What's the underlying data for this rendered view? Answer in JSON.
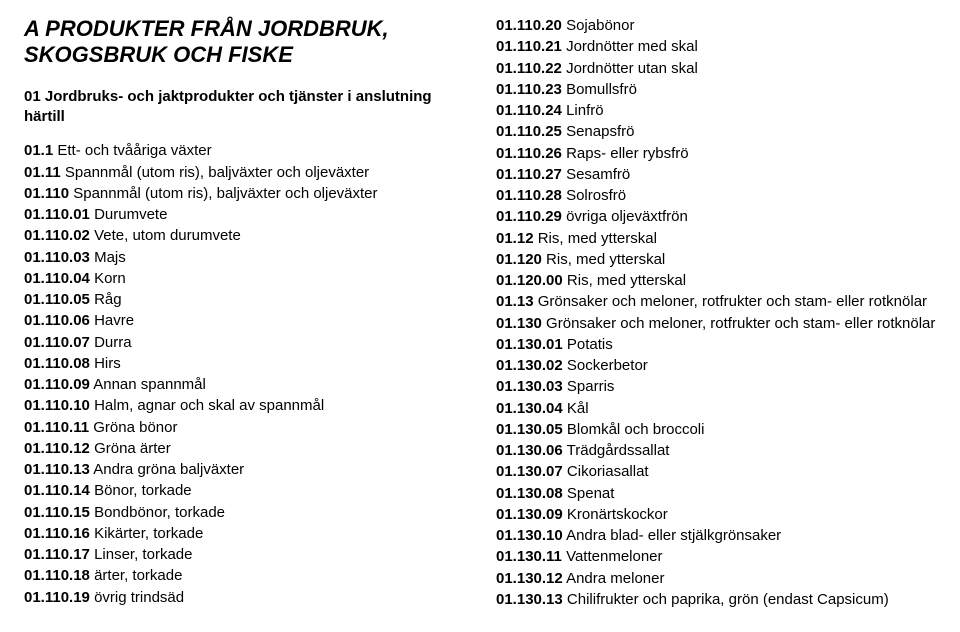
{
  "section_title": "A PRODUKTER FRÅN JORDBRUK, SKOGSBRUK OCH FISKE",
  "left": {
    "heading": "01 Jordbruks- och jaktprodukter och tjänster i anslutning härtill",
    "items": [
      {
        "code": "01.1",
        "label": " Ett- och tvååriga växter",
        "style": "bold-code"
      },
      {
        "code": "01.11",
        "label": " Spannmål (utom ris), baljväxter och oljeväxter",
        "style": "bold-code"
      },
      {
        "code": "01.110",
        "label": " Spannmål (utom ris), baljväxter och oljeväxter",
        "style": "bold-code"
      },
      {
        "code": "01.110.01",
        "label": " Durumvete",
        "style": "bold-code"
      },
      {
        "code": "01.110.02",
        "label": " Vete, utom durumvete",
        "style": "bold-code"
      },
      {
        "code": "01.110.03",
        "label": " Majs",
        "style": "bold-code"
      },
      {
        "code": "01.110.04",
        "label": " Korn",
        "style": "bold-code"
      },
      {
        "code": "01.110.05",
        "label": " Råg",
        "style": "bold-code"
      },
      {
        "code": "01.110.06",
        "label": " Havre",
        "style": "bold-code"
      },
      {
        "code": "01.110.07",
        "label": " Durra",
        "style": "bold-code"
      },
      {
        "code": "01.110.08",
        "label": " Hirs",
        "style": "bold-code"
      },
      {
        "code": "01.110.09",
        "label": " Annan spannmål",
        "style": "bold-code"
      },
      {
        "code": "01.110.10",
        "label": " Halm, agnar och skal av spannmål",
        "style": "bold-code"
      },
      {
        "code": "01.110.11",
        "label": " Gröna bönor",
        "style": "bold-code"
      },
      {
        "code": "01.110.12",
        "label": " Gröna ärter",
        "style": "bold-code"
      },
      {
        "code": "01.110.13",
        "label": " Andra gröna baljväxter",
        "style": "bold-code"
      },
      {
        "code": "01.110.14",
        "label": " Bönor, torkade",
        "style": "bold-code"
      },
      {
        "code": "01.110.15",
        "label": " Bondbönor, torkade",
        "style": "bold-code"
      },
      {
        "code": "01.110.16",
        "label": " Kikärter, torkade",
        "style": "bold-code"
      },
      {
        "code": "01.110.17",
        "label": " Linser, torkade",
        "style": "bold-code"
      },
      {
        "code": "01.110.18",
        "label": " ärter, torkade",
        "style": "bold-code"
      },
      {
        "code": "01.110.19",
        "label": " övrig trindsäd",
        "style": "bold-code"
      }
    ]
  },
  "right": {
    "items": [
      {
        "code": "01.110.20",
        "label": " Sojabönor",
        "style": "bold-code"
      },
      {
        "code": "01.110.21",
        "label": " Jordnötter med skal",
        "style": "bold-code"
      },
      {
        "code": "01.110.22",
        "label": " Jordnötter utan skal",
        "style": "bold-code"
      },
      {
        "code": "01.110.23",
        "label": " Bomullsfrö",
        "style": "bold-code"
      },
      {
        "code": "01.110.24",
        "label": " Linfrö",
        "style": "bold-code"
      },
      {
        "code": "01.110.25",
        "label": " Senapsfrö",
        "style": "bold-code"
      },
      {
        "code": "01.110.26",
        "label": " Raps- eller rybsfrö",
        "style": "bold-code"
      },
      {
        "code": "01.110.27",
        "label": " Sesamfrö",
        "style": "bold-code"
      },
      {
        "code": "01.110.28",
        "label": " Solrosfrö",
        "style": "bold-code"
      },
      {
        "code": "01.110.29",
        "label": " övriga oljeväxtfrön",
        "style": "bold-code"
      },
      {
        "code": "01.12",
        "label": " Ris, med ytterskal",
        "style": "bold-code"
      },
      {
        "code": "01.120",
        "label": " Ris, med ytterskal",
        "style": "bold-code"
      },
      {
        "code": "01.120.00",
        "label": " Ris, med ytterskal",
        "style": "bold-code"
      },
      {
        "code": "01.13",
        "label": " Grönsaker och meloner, rotfrukter och stam- eller rotknölar",
        "style": "bold-code"
      },
      {
        "code": "01.130",
        "label": " Grönsaker och meloner, rotfrukter och stam- eller rotknölar",
        "style": "bold-code"
      },
      {
        "code": "01.130.01",
        "label": " Potatis",
        "style": "bold-code"
      },
      {
        "code": "01.130.02",
        "label": " Sockerbetor",
        "style": "bold-code"
      },
      {
        "code": "01.130.03",
        "label": " Sparris",
        "style": "bold-code"
      },
      {
        "code": "01.130.04",
        "label": " Kål",
        "style": "bold-code"
      },
      {
        "code": "01.130.05",
        "label": " Blomkål och broccoli",
        "style": "bold-code"
      },
      {
        "code": "01.130.06",
        "label": " Trädgårdssallat",
        "style": "bold-code"
      },
      {
        "code": "01.130.07",
        "label": " Cikoriasallat",
        "style": "bold-code"
      },
      {
        "code": "01.130.08",
        "label": " Spenat",
        "style": "bold-code"
      },
      {
        "code": "01.130.09",
        "label": " Kronärtskockor",
        "style": "bold-code"
      },
      {
        "code": "01.130.10",
        "label": " Andra blad- eller stjälkgrönsaker",
        "style": "bold-code"
      },
      {
        "code": "01.130.11",
        "label": " Vattenmeloner",
        "style": "bold-code"
      },
      {
        "code": "01.130.12",
        "label": " Andra meloner",
        "style": "bold-code"
      },
      {
        "code": "01.130.13",
        "label": " Chilifrukter och paprika, grön (endast Capsicum)",
        "style": "bold-code"
      }
    ]
  }
}
